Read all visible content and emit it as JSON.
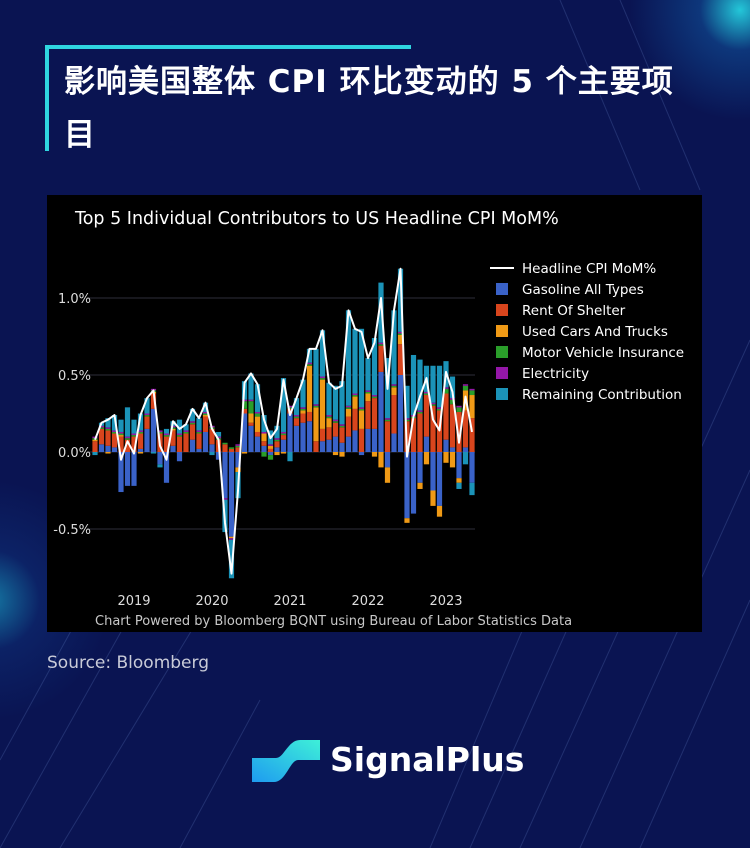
{
  "header": {
    "title": "影响美国整体 CPI 环比变动的 5 个主要项目"
  },
  "source": "Source: Bloomberg",
  "brand": {
    "name": "SignalPlus"
  },
  "colors": {
    "background": "#0a1452",
    "accent": "#2fd6e0"
  },
  "chart_data": {
    "type": "bar",
    "stacked": true,
    "title": "Top 5 Individual Contributors to US Headline CPI MoM%",
    "footnote": "Chart Powered by Bloomberg BQNT using Bureau of Labor Statistics Data",
    "legend_position": "right",
    "grid": true,
    "ylim": [
      -0.85,
      1.25
    ],
    "yticks": [
      -0.5,
      0.0,
      0.5,
      1.0
    ],
    "ytick_labels": [
      "-0.5%",
      "0.0%",
      "0.5%",
      "1.0%"
    ],
    "xticks": [
      "2019-01",
      "2020-01",
      "2021-01",
      "2022-01",
      "2023-01"
    ],
    "xtick_labels": [
      "2019",
      "2020",
      "2021",
      "2022",
      "2023"
    ],
    "x": [
      "2018-07",
      "2018-08",
      "2018-09",
      "2018-10",
      "2018-11",
      "2018-12",
      "2019-01",
      "2019-02",
      "2019-03",
      "2019-04",
      "2019-05",
      "2019-06",
      "2019-07",
      "2019-08",
      "2019-09",
      "2019-10",
      "2019-11",
      "2019-12",
      "2020-01",
      "2020-02",
      "2020-03",
      "2020-04",
      "2020-05",
      "2020-06",
      "2020-07",
      "2020-08",
      "2020-09",
      "2020-10",
      "2020-11",
      "2020-12",
      "2021-01",
      "2021-02",
      "2021-03",
      "2021-04",
      "2021-05",
      "2021-06",
      "2021-07",
      "2021-08",
      "2021-09",
      "2021-10",
      "2021-11",
      "2021-12",
      "2022-01",
      "2022-02",
      "2022-03",
      "2022-04",
      "2022-05",
      "2022-06",
      "2022-07",
      "2022-08",
      "2022-09",
      "2022-10",
      "2022-11",
      "2022-12",
      "2023-01",
      "2023-02",
      "2023-03",
      "2023-04",
      "2023-05"
    ],
    "line": {
      "name": "Headline CPI MoM%",
      "color": "#ffffff",
      "values": [
        0.08,
        0.19,
        0.21,
        0.24,
        -0.05,
        0.07,
        -0.01,
        0.24,
        0.35,
        0.4,
        0.04,
        -0.05,
        0.2,
        0.15,
        0.18,
        0.28,
        0.22,
        0.32,
        0.15,
        0.08,
        -0.46,
        -0.79,
        -0.25,
        0.45,
        0.51,
        0.44,
        0.21,
        0.09,
        0.15,
        0.47,
        0.24,
        0.35,
        0.47,
        0.67,
        0.67,
        0.79,
        0.45,
        0.41,
        0.43,
        0.92,
        0.8,
        0.78,
        0.61,
        0.71,
        1.0,
        0.41,
        0.92,
        1.19,
        -0.03,
        0.23,
        0.36,
        0.48,
        0.21,
        0.14,
        0.52,
        0.39,
        0.06,
        0.36,
        0.13
      ]
    },
    "series": [
      {
        "name": "Gasoline All Types",
        "color": "#3a62c8",
        "values": [
          0.0,
          0.05,
          0.04,
          0.03,
          -0.26,
          -0.22,
          -0.22,
          0.02,
          0.15,
          0.28,
          -0.08,
          -0.2,
          0.04,
          -0.06,
          0.0,
          0.08,
          0.02,
          0.13,
          0.05,
          -0.05,
          -0.3,
          -0.55,
          -0.1,
          0.25,
          0.17,
          0.1,
          0.04,
          -0.02,
          0.03,
          0.08,
          0.25,
          0.17,
          0.19,
          0.2,
          0.0,
          0.07,
          0.08,
          0.1,
          0.06,
          0.1,
          0.14,
          -0.02,
          0.15,
          0.15,
          0.52,
          -0.1,
          0.12,
          0.5,
          -0.43,
          -0.4,
          -0.2,
          0.1,
          -0.25,
          -0.35,
          0.08,
          0.03,
          -0.17,
          0.03,
          -0.2
        ]
      },
      {
        "name": "Rent Of Shelter",
        "color": "#d8451d",
        "values": [
          0.07,
          0.1,
          0.1,
          0.09,
          0.1,
          0.08,
          0.1,
          0.1,
          0.08,
          0.1,
          0.12,
          0.1,
          0.1,
          0.1,
          0.12,
          0.1,
          0.1,
          0.1,
          0.1,
          0.08,
          0.05,
          0.02,
          0.03,
          0.03,
          0.02,
          0.03,
          0.03,
          0.02,
          0.04,
          0.03,
          0.03,
          0.05,
          0.06,
          0.06,
          0.07,
          0.08,
          0.08,
          0.09,
          0.1,
          0.13,
          0.14,
          0.15,
          0.18,
          0.2,
          0.17,
          0.2,
          0.25,
          0.2,
          0.2,
          0.22,
          0.25,
          0.27,
          0.3,
          0.27,
          0.3,
          0.28,
          0.26,
          0.24,
          0.22
        ]
      },
      {
        "name": "Used Cars And Trucks",
        "color": "#f09a16",
        "values": [
          0.01,
          0.0,
          -0.01,
          0.0,
          0.01,
          0.0,
          0.0,
          -0.01,
          0.0,
          0.01,
          0.0,
          0.0,
          0.01,
          0.0,
          0.0,
          0.0,
          0.0,
          0.01,
          0.0,
          0.0,
          0.0,
          -0.01,
          -0.03,
          -0.01,
          0.06,
          0.1,
          0.05,
          0.02,
          -0.02,
          -0.01,
          0.0,
          0.0,
          0.02,
          0.3,
          0.22,
          0.32,
          0.06,
          -0.02,
          -0.03,
          0.05,
          0.08,
          0.12,
          0.05,
          -0.03,
          -0.1,
          -0.1,
          0.05,
          0.06,
          -0.03,
          0.0,
          -0.04,
          -0.08,
          -0.1,
          -0.07,
          -0.07,
          -0.1,
          -0.03,
          0.13,
          0.15
        ]
      },
      {
        "name": "Motor Vehicle Insurance",
        "color": "#2a9e2a",
        "values": [
          0.01,
          0.01,
          0.01,
          0.01,
          0.01,
          0.01,
          0.01,
          0.01,
          0.01,
          0.01,
          0.01,
          0.01,
          0.01,
          0.01,
          0.01,
          0.01,
          0.01,
          0.01,
          0.01,
          0.01,
          0.01,
          0.01,
          0.01,
          0.05,
          0.08,
          0.02,
          -0.03,
          -0.03,
          0.01,
          0.01,
          0.01,
          0.01,
          0.01,
          0.01,
          0.01,
          0.01,
          0.01,
          0.01,
          0.01,
          0.01,
          0.01,
          0.01,
          0.01,
          0.01,
          0.01,
          0.01,
          0.01,
          0.01,
          0.01,
          0.01,
          0.01,
          0.01,
          0.01,
          0.01,
          0.03,
          0.03,
          0.03,
          0.03,
          0.03
        ]
      },
      {
        "name": "Electricity",
        "color": "#9417a8",
        "values": [
          0.01,
          0.01,
          0.01,
          0.01,
          0.01,
          0.01,
          0.01,
          0.01,
          0.01,
          0.01,
          0.01,
          0.01,
          0.01,
          0.01,
          0.01,
          0.01,
          0.01,
          0.01,
          0.01,
          0.01,
          -0.01,
          -0.01,
          0.01,
          0.01,
          0.01,
          0.01,
          0.01,
          0.01,
          0.01,
          0.01,
          0.01,
          0.01,
          0.01,
          0.01,
          0.01,
          0.01,
          0.01,
          0.01,
          0.01,
          0.01,
          0.01,
          0.01,
          0.01,
          0.01,
          0.01,
          0.01,
          0.01,
          0.01,
          0.01,
          0.01,
          0.01,
          0.01,
          0.01,
          0.01,
          0.01,
          0.01,
          0.01,
          0.01,
          0.01
        ]
      },
      {
        "name": "Remaining Contribution",
        "color": "#1b93b8",
        "values": [
          -0.02,
          0.02,
          0.06,
          0.1,
          0.08,
          0.19,
          0.09,
          0.11,
          0.1,
          -0.01,
          -0.02,
          0.03,
          0.03,
          0.09,
          0.04,
          0.08,
          0.08,
          0.06,
          -0.02,
          0.03,
          -0.21,
          -0.25,
          -0.17,
          0.12,
          0.17,
          0.18,
          0.11,
          0.09,
          0.08,
          0.35,
          -0.06,
          0.11,
          0.18,
          0.09,
          0.36,
          0.3,
          0.21,
          0.22,
          0.28,
          0.62,
          0.42,
          0.51,
          0.21,
          0.37,
          0.39,
          0.39,
          0.48,
          0.41,
          0.21,
          0.39,
          0.33,
          0.17,
          0.24,
          0.27,
          0.17,
          0.14,
          -0.04,
          -0.08,
          -0.08
        ]
      }
    ]
  }
}
